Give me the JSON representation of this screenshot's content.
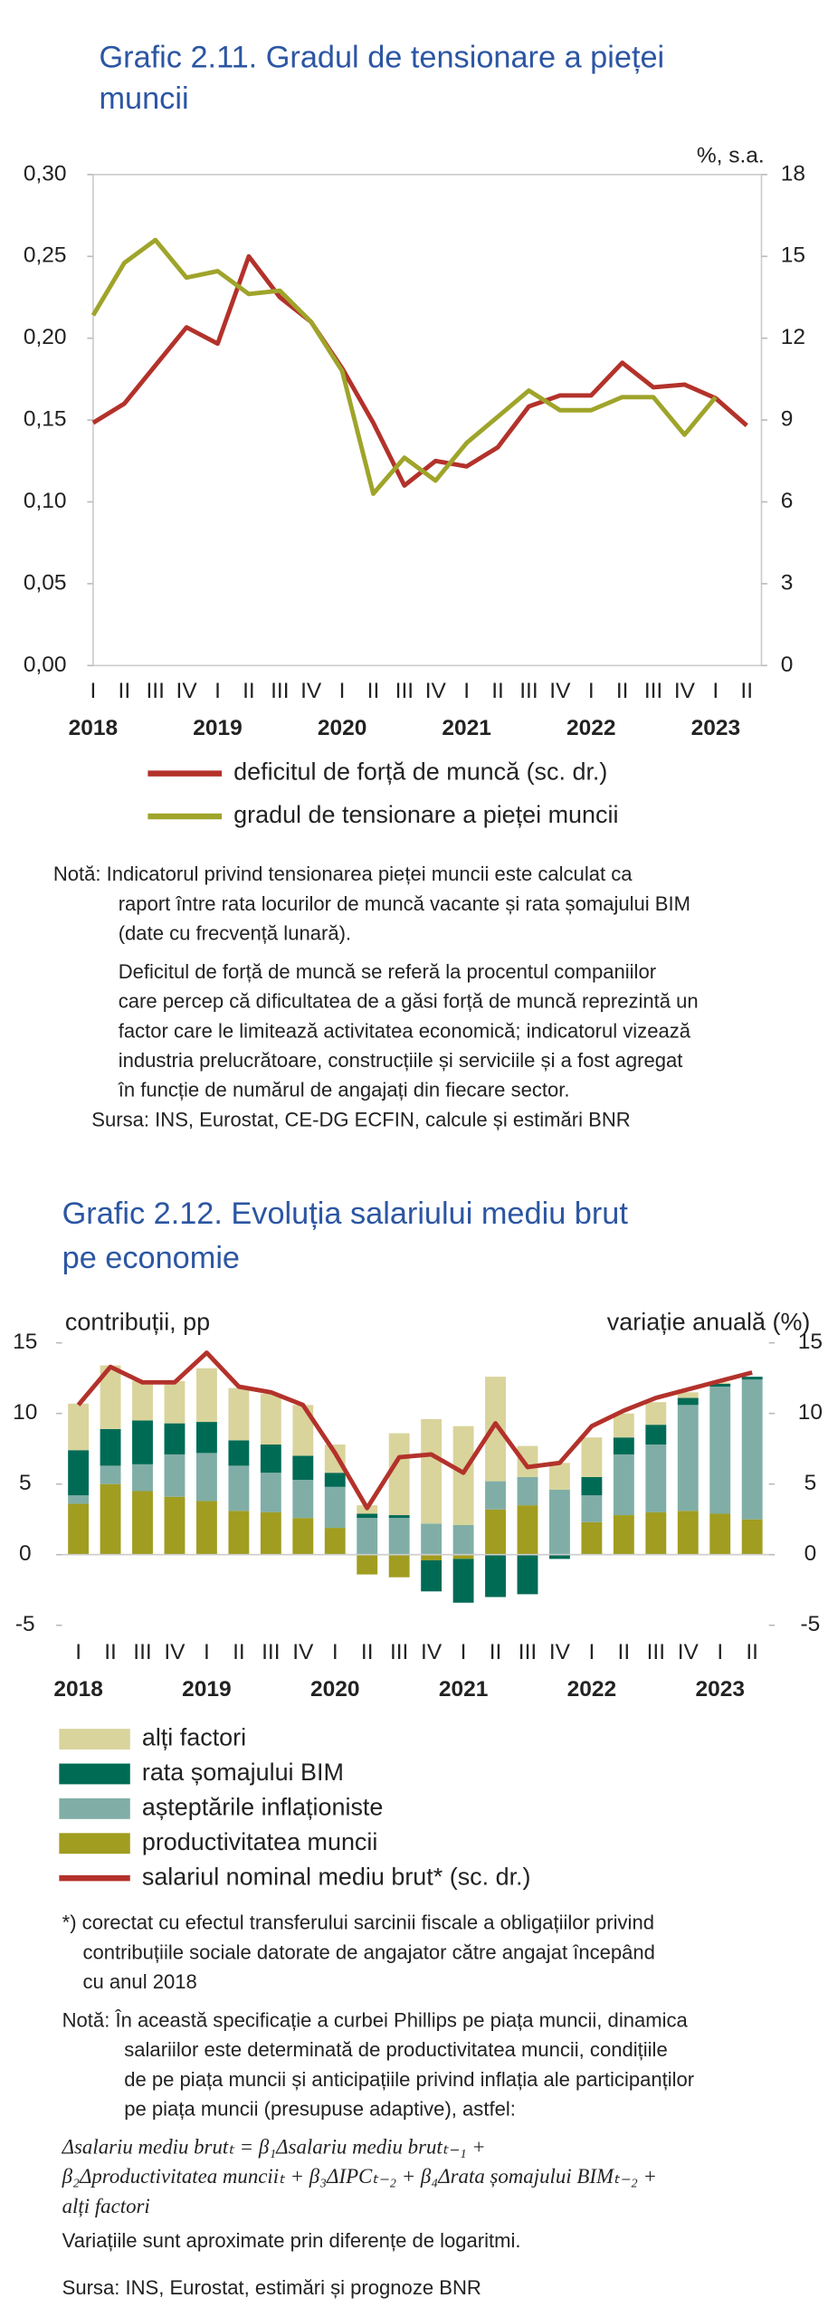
{
  "chart_data": [
    {
      "type": "line",
      "title": [
        "Grafic 2.11. Gradul de tensionare a pieței",
        "muncii"
      ],
      "y2label": "%, s.a.",
      "categories": [
        "I",
        "II",
        "III",
        "IV",
        "I",
        "II",
        "III",
        "IV",
        "I",
        "II",
        "III",
        "IV",
        "I",
        "II",
        "III",
        "IV",
        "I",
        "II",
        "III",
        "IV",
        "I",
        "II"
      ],
      "years": [
        "2018",
        null,
        null,
        null,
        "2019",
        null,
        null,
        null,
        "2020",
        null,
        null,
        null,
        "2021",
        null,
        null,
        null,
        "2022",
        null,
        null,
        null,
        "2023",
        null
      ],
      "ylim": [
        0,
        0.3
      ],
      "yticks": [
        {
          "value": 0,
          "label": "0,00"
        },
        {
          "value": 0.05,
          "label": "0,05"
        },
        {
          "value": 0.1,
          "label": "0,10"
        },
        {
          "value": 0.15,
          "label": "0,15"
        },
        {
          "value": 0.2,
          "label": "0,20"
        },
        {
          "value": 0.25,
          "label": "0,25"
        },
        {
          "value": 0.3,
          "label": "0,30"
        }
      ],
      "y2lim": [
        0,
        18
      ],
      "y2ticks": [
        0,
        3,
        6,
        9,
        12,
        15,
        18
      ],
      "series": [
        {
          "name": "deficitul de forță de muncă (sc. dr.)",
          "color": "#b3322b",
          "axis": "y2",
          "values": [
            8.9,
            9.6,
            11.0,
            12.4,
            11.8,
            15.0,
            13.5,
            12.6,
            10.9,
            8.9,
            6.6,
            7.5,
            7.3,
            8.0,
            9.5,
            9.9,
            9.9,
            11.1,
            10.2,
            10.3,
            9.8,
            8.8
          ]
        },
        {
          "name": "gradul de tensionare a pieței muncii",
          "color": "#9fa42a",
          "values": [
            0.214,
            0.246,
            0.26,
            0.237,
            0.241,
            0.227,
            0.229,
            0.21,
            0.18,
            0.105,
            0.127,
            0.113,
            0.136,
            0.152,
            0.168,
            0.156,
            0.156,
            0.164,
            0.164,
            0.141,
            0.164,
            null
          ]
        }
      ],
      "note": [
        "Notă: Indicatorul privind tensionarea pieței muncii este calculat ca",
        "raport între rata locurilor de muncă vacante și rata șomajului BIM",
        "(date cu frecvență lunară)."
      ],
      "note2": [
        "Deficitul de forță de muncă se referă la procentul companiilor",
        "care percep că dificultatea de a găsi forță de muncă reprezintă un",
        "factor care le limitează activitatea economică; indicatorul vizează",
        "industria prelucrătoare, construcțiile și serviciile și a fost agregat",
        "în funcție de numărul de angajați din fiecare sector."
      ],
      "source": "Sursa: INS, Eurostat, CE-DG ECFIN, calcule și estimări BNR"
    },
    {
      "type": "bar",
      "stacked": true,
      "title": [
        "Grafic 2.12. Evoluția salariului mediu brut",
        "pe economie"
      ],
      "ylabel": "contribuții, pp",
      "y2label": "variație anuală (%)",
      "categories": [
        "I",
        "II",
        "III",
        "IV",
        "I",
        "II",
        "III",
        "IV",
        "I",
        "II",
        "III",
        "IV",
        "I",
        "II",
        "III",
        "IV",
        "I",
        "II",
        "III",
        "IV",
        "I",
        "II"
      ],
      "years": [
        "2018",
        null,
        null,
        null,
        "2019",
        null,
        null,
        null,
        "2020",
        null,
        null,
        null,
        "2021",
        null,
        null,
        null,
        "2022",
        null,
        null,
        null,
        "2023",
        null
      ],
      "ylim": [
        -5,
        15
      ],
      "yticks": [
        -5,
        0,
        5,
        10,
        15
      ],
      "y2lim": [
        -5,
        15
      ],
      "y2ticks": [
        -5,
        0,
        5,
        10,
        15
      ],
      "series": [
        {
          "name": "alți factori",
          "color": "#d9d49c",
          "values": [
            3.3,
            4.5,
            2.8,
            3.0,
            3.8,
            3.7,
            3.6,
            3.6,
            2.0,
            0.6,
            5.8,
            7.4,
            7.0,
            7.4,
            2.2,
            1.9,
            2.8,
            1.7,
            1.6,
            0.4,
            0.1,
            0.0
          ]
        },
        {
          "name": "rata șomajului BIM",
          "color": "#006b55",
          "values": [
            3.2,
            2.6,
            3.1,
            2.2,
            2.2,
            1.8,
            2.0,
            1.7,
            1.0,
            0.3,
            0.2,
            -2.2,
            -3.1,
            -3.0,
            -2.8,
            -0.3,
            1.3,
            1.2,
            1.4,
            0.5,
            0.2,
            0.2
          ]
        },
        {
          "name": "așteptările inflaționiste",
          "color": "#80aea6",
          "values": [
            0.6,
            1.3,
            1.9,
            3.0,
            3.4,
            3.2,
            2.8,
            2.7,
            2.9,
            2.6,
            2.6,
            2.2,
            2.1,
            2.0,
            2.0,
            4.6,
            1.9,
            4.3,
            4.8,
            7.5,
            9.0,
            9.9
          ]
        },
        {
          "name": "productivitatea muncii",
          "color": "#a19d20",
          "values": [
            3.6,
            5.0,
            4.5,
            4.1,
            3.8,
            3.1,
            3.0,
            2.6,
            1.9,
            -1.4,
            -1.6,
            -0.4,
            -0.3,
            3.2,
            3.5,
            0,
            2.3,
            2.8,
            3.0,
            3.1,
            2.9,
            2.5
          ]
        },
        {
          "name": "salariul nominal mediu brut* (sc. dr.)",
          "color": "#b3322b",
          "axis": "y2",
          "type": "line",
          "values": [
            10.6,
            13.3,
            12.2,
            12.2,
            14.3,
            11.9,
            11.5,
            10.6,
            7.2,
            3.3,
            6.9,
            7.1,
            5.8,
            9.3,
            6.2,
            6.5,
            9.1,
            10.2,
            11.1,
            11.7,
            12.3,
            12.9
          ]
        }
      ],
      "footnote": [
        "*) corectat cu efectul transferului sarcinii fiscale a obligațiilor privind",
        "contribuțiile sociale datorate de angajator către angajat începând",
        "cu anul 2018"
      ],
      "note": [
        "Notă: În această specificație a curbei Phillips pe piața muncii, dinamica",
        "salariilor este determinată de productivitatea muncii, condițiile",
        "de pe piața muncii și anticipațiile privind inflația ale participanților",
        "pe piața muncii (presupuse adaptive), astfel:"
      ],
      "formula": [
        "Δsalariu mediu brutₜ = β₁Δsalariu mediu brutₜ₋₁ +",
        "β₂Δproductivitatea munciiₜ + β₃ΔIPCₜ₋₂ + β₄Δrata șomajului BIMₜ₋₂ +",
        "alți factori"
      ],
      "note2": "Variațiile sunt aproximate prin diferențe de logaritmi.",
      "source": "Sursa: INS, Eurostat, estimări și prognoze BNR"
    }
  ]
}
